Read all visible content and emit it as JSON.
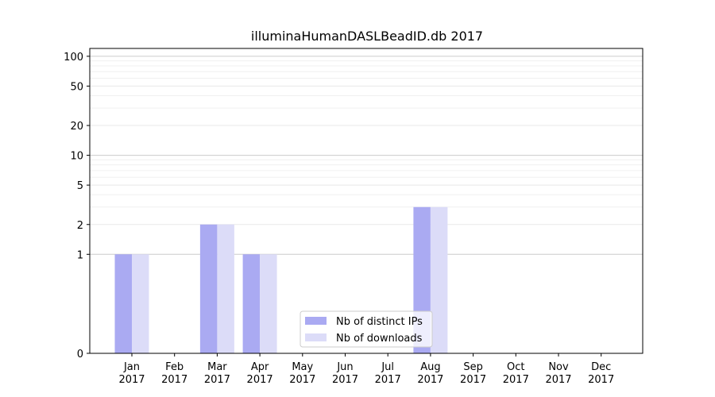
{
  "chart_data": {
    "type": "bar",
    "title": "illuminaHumanDASLBeadID.db 2017",
    "xlabel": "",
    "ylabel": "",
    "y_scale": "symlog",
    "y_ticks": [
      0,
      1,
      2,
      5,
      10,
      20,
      50,
      100
    ],
    "y_tick_labels": [
      "0",
      "1",
      "2",
      "5",
      "10",
      "20",
      "50",
      "100"
    ],
    "ylim": [
      0,
      120
    ],
    "categories": [
      {
        "month": "Jan",
        "year": "2017"
      },
      {
        "month": "Feb",
        "year": "2017"
      },
      {
        "month": "Mar",
        "year": "2017"
      },
      {
        "month": "Apr",
        "year": "2017"
      },
      {
        "month": "May",
        "year": "2017"
      },
      {
        "month": "Jun",
        "year": "2017"
      },
      {
        "month": "Jul",
        "year": "2017"
      },
      {
        "month": "Aug",
        "year": "2017"
      },
      {
        "month": "Sep",
        "year": "2017"
      },
      {
        "month": "Oct",
        "year": "2017"
      },
      {
        "month": "Nov",
        "year": "2017"
      },
      {
        "month": "Dec",
        "year": "2017"
      }
    ],
    "series": [
      {
        "name": "Nb of distinct IPs",
        "color": "#aaaaf2",
        "values": [
          1,
          0,
          2,
          1,
          0,
          0,
          0,
          3,
          0,
          0,
          0,
          0
        ]
      },
      {
        "name": "Nb of downloads",
        "color": "#dcdcf8",
        "values": [
          1,
          0,
          2,
          1,
          0,
          0,
          0,
          3,
          0,
          0,
          0,
          0
        ]
      }
    ],
    "grid": "y",
    "legend_placement": "lower-center"
  }
}
